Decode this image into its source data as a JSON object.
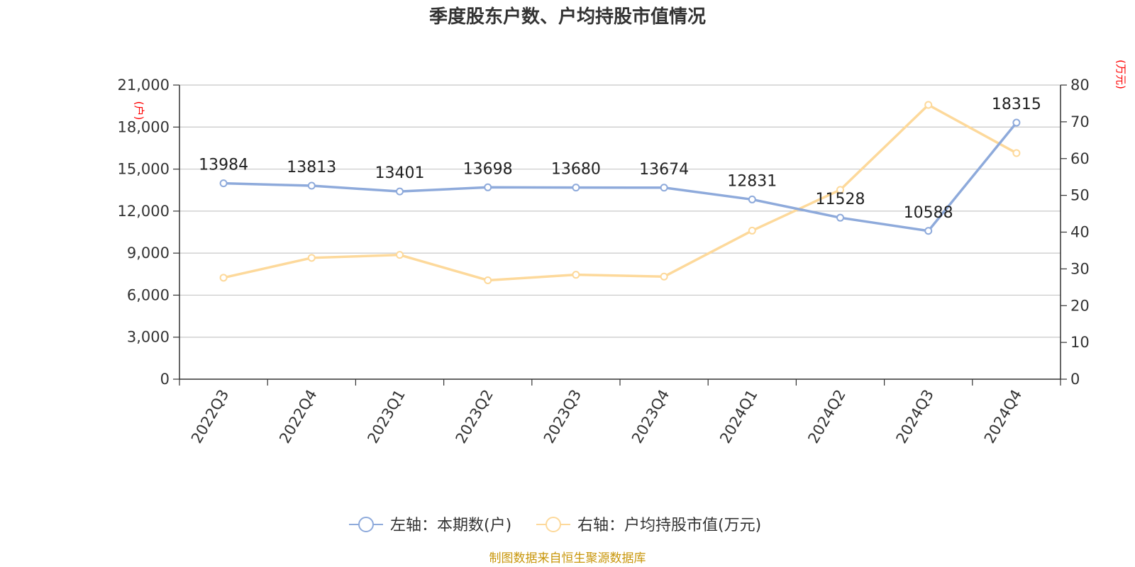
{
  "chart_data": {
    "type": "line",
    "title": "季度股东户数、户均持股市值情况",
    "categories": [
      "2022Q3",
      "2022Q4",
      "2023Q1",
      "2023Q2",
      "2023Q3",
      "2023Q4",
      "2024Q1",
      "2024Q2",
      "2024Q3",
      "2024Q4"
    ],
    "left_axis": {
      "unit": "(户)",
      "ylim": [
        0,
        21000
      ],
      "ticks": [
        0,
        3000,
        6000,
        9000,
        12000,
        15000,
        18000,
        21000
      ],
      "tick_labels": [
        "0",
        "3,000",
        "6,000",
        "9,000",
        "12,000",
        "15,000",
        "18,000",
        "21,000"
      ]
    },
    "right_axis": {
      "unit": "(万元)",
      "ylim": [
        0,
        80
      ],
      "ticks": [
        0,
        10,
        20,
        30,
        40,
        50,
        60,
        70,
        80
      ],
      "tick_labels": [
        "0",
        "10",
        "20",
        "30",
        "40",
        "50",
        "60",
        "70",
        "80"
      ]
    },
    "series": [
      {
        "name": "左轴：本期数(户)",
        "axis": "left",
        "color": "#8eaadb",
        "values": [
          13984,
          13813,
          13401,
          13698,
          13680,
          13674,
          12831,
          11528,
          10588,
          18315
        ],
        "data_labels": [
          "13984",
          "13813",
          "13401",
          "13698",
          "13680",
          "13674",
          "12831",
          "11528",
          "10588",
          "18315"
        ]
      },
      {
        "name": "右轴：户均持股市值(万元)",
        "axis": "right",
        "color": "#fdd99b",
        "values": [
          27.6,
          33.0,
          33.8,
          26.9,
          28.4,
          27.9,
          40.4,
          51.5,
          74.6,
          61.5
        ]
      }
    ],
    "grid": true,
    "legend_position": "bottom",
    "source": "制图数据来自恒生聚源数据库"
  }
}
